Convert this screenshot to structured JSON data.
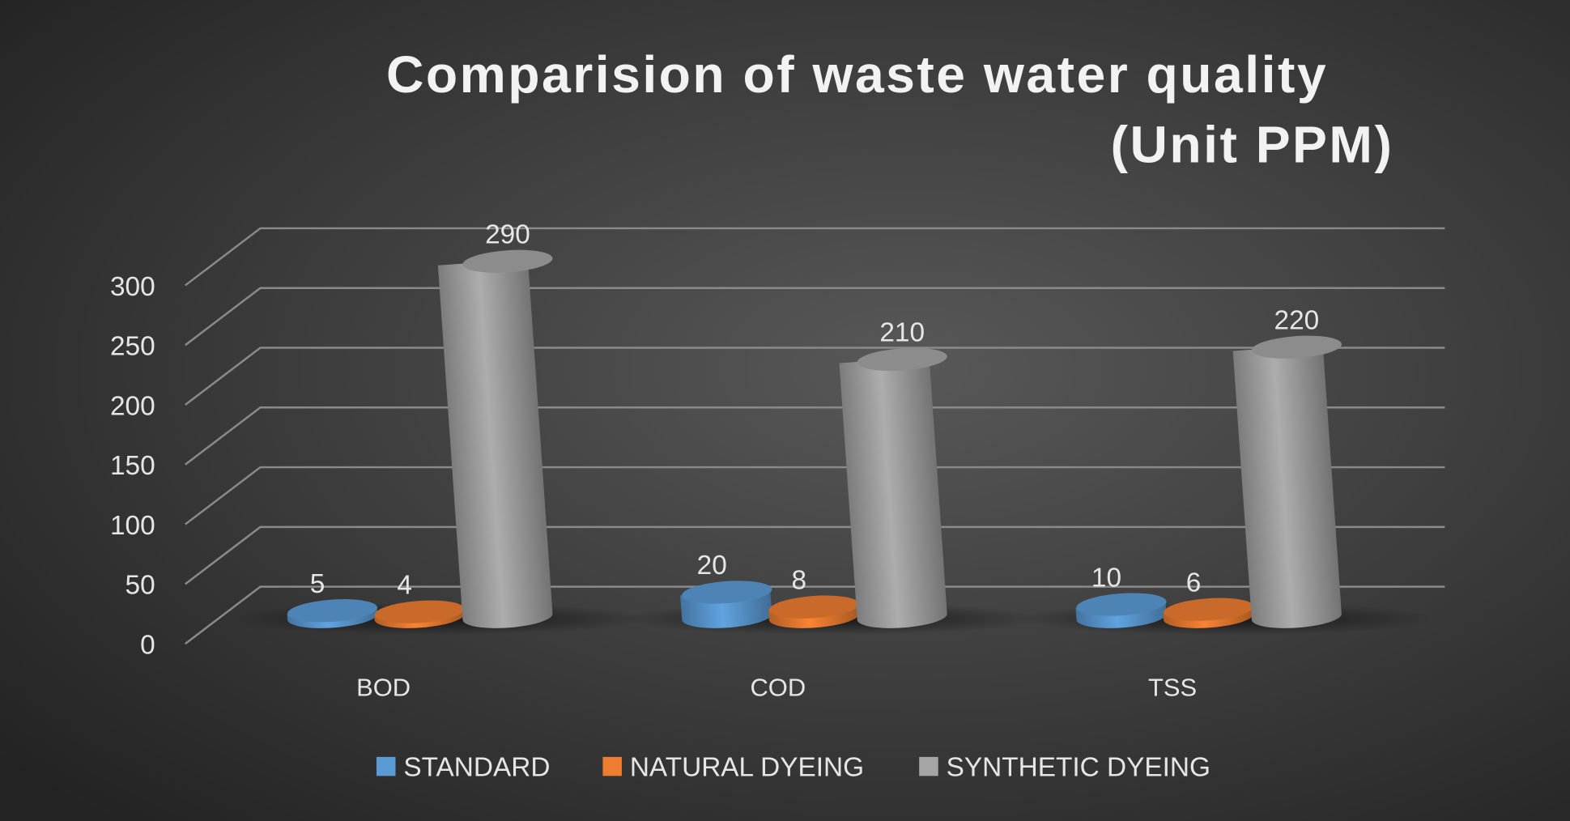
{
  "chart_data": {
    "type": "bar",
    "variant": "3d-cylinder",
    "title": "Comparision of waste water quality",
    "subtitle": "(Unit PPM)",
    "xlabel": "",
    "ylabel": "",
    "ylim": [
      0,
      300
    ],
    "yticks": [
      0,
      50,
      100,
      150,
      200,
      250,
      300
    ],
    "grid": true,
    "legend_position": "bottom",
    "categories": [
      "BOD",
      "COD",
      "TSS"
    ],
    "series": [
      {
        "name": "STANDARD",
        "values": [
          5,
          20,
          10
        ],
        "color": "#5b9bd5"
      },
      {
        "name": "NATURAL DYEING",
        "values": [
          4,
          8,
          6
        ],
        "color": "#ed7d31"
      },
      {
        "name": "SYNTHETIC DYEING",
        "values": [
          290,
          210,
          220
        ],
        "color": "#a5a5a5"
      }
    ]
  }
}
